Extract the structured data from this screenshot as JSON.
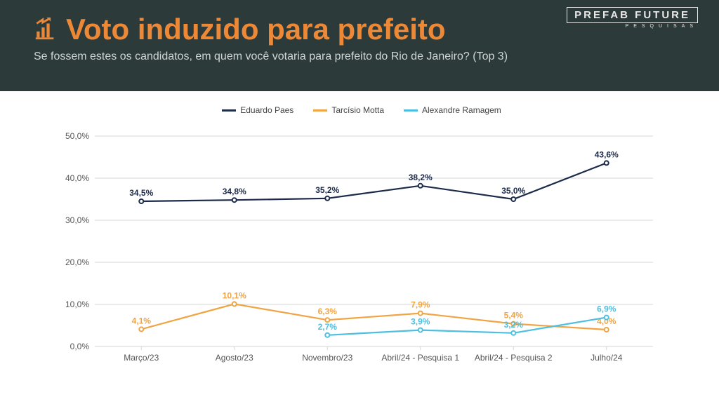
{
  "brand": {
    "name": "PREFAB FUTURE",
    "tagline": "PESQUISAS"
  },
  "header": {
    "title": "Voto induzido para prefeito",
    "subtitle": "Se fossem estes os candidatos, em quem você votaria para prefeito do Rio de Janeiro? (Top 3)",
    "title_color": "#ed8936",
    "subtitle_color": "#cfd6d6",
    "bg_color": "#2d3a3a"
  },
  "chart": {
    "type": "line",
    "categories": [
      "Março/23",
      "Agosto/23",
      "Novembro/23",
      "Abril/24 - Pesquisa 1",
      "Abril/24 - Pesquisa 2",
      "Julho/24"
    ],
    "ylim": [
      0,
      50
    ],
    "ytick_step": 10,
    "y_suffix": ",0%",
    "grid_color": "#d6d6d6",
    "background_color": "#ffffff",
    "axis_fontsize": 12,
    "label_fontsize": 12,
    "label_fontweight": 700,
    "line_width": 2.2,
    "marker_radius": 3,
    "series": [
      {
        "name": "Eduardo Paes",
        "color": "#1c2b4a",
        "values": [
          34.5,
          34.8,
          35.2,
          38.2,
          35.0,
          43.6
        ],
        "labels": [
          "34,5%",
          "34,8%",
          "35,2%",
          "38,2%",
          "35,0%",
          "43,6%"
        ]
      },
      {
        "name": "Tarcísio Motta",
        "color": "#f0a443",
        "values": [
          4.1,
          10.1,
          6.3,
          7.9,
          5.4,
          4.0
        ],
        "labels": [
          "4,1%",
          "10,1%",
          "6,3%",
          "7,9%",
          "5,4%",
          "4,0%"
        ]
      },
      {
        "name": "Alexandre Ramagem",
        "color": "#4dbfe0",
        "values": [
          null,
          null,
          2.7,
          3.9,
          3.2,
          6.9
        ],
        "labels": [
          null,
          null,
          "2,7%",
          "3,9%",
          "3,2%",
          "6,9%"
        ]
      }
    ]
  }
}
